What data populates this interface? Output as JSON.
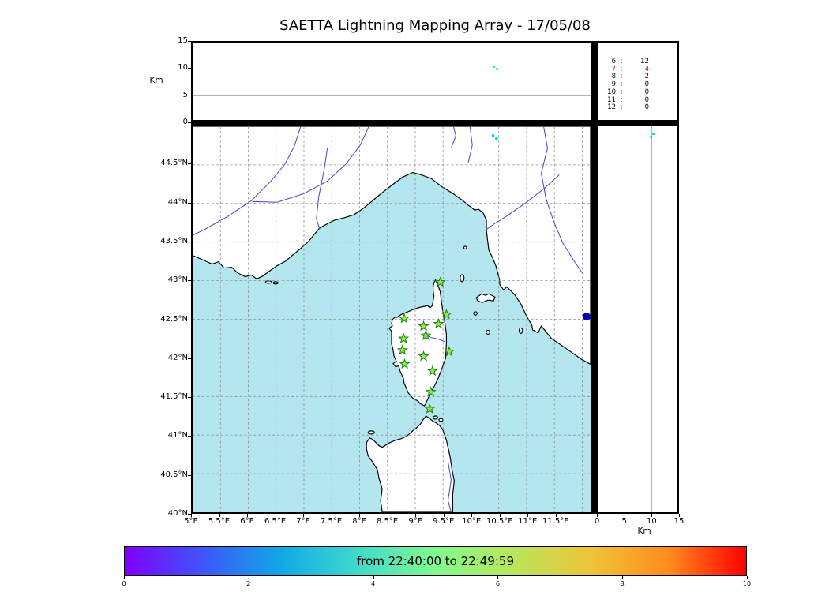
{
  "title": "SAETTA Lightning Mapping Array - 17/05/08",
  "colors": {
    "sea": "#b4e6f0",
    "land": "#ffffff",
    "coast": "#000000",
    "river": "#4343c6",
    "grid": "#8c8c8c",
    "station_fill": "#8dee3c",
    "station_edge": "#1f7a1f",
    "source": "#00d4d4",
    "lake": "#0000bb",
    "highlight": "#dd0000"
  },
  "altitude_panel": {
    "ylabel": "Km",
    "yticks": [
      15,
      10,
      5,
      0
    ],
    "grid_km": [
      5,
      10
    ],
    "ylim": [
      0,
      15
    ]
  },
  "station_counts": [
    {
      "stations": "6",
      "count": "12",
      "highlight": false
    },
    {
      "stations": "7",
      "count": "4",
      "highlight": true
    },
    {
      "stations": "8",
      "count": "2",
      "highlight": false
    },
    {
      "stations": "9",
      "count": "0",
      "highlight": false
    },
    {
      "stations": "10",
      "count": "0",
      "highlight": false
    },
    {
      "stations": "11",
      "count": "0",
      "highlight": false
    },
    {
      "stations": "12",
      "count": "0",
      "highlight": false
    }
  ],
  "map": {
    "lat_ticks": [
      {
        "v": 44.5,
        "label": "44.5°N"
      },
      {
        "v": 44,
        "label": "44°N"
      },
      {
        "v": 43.5,
        "label": "43.5°N"
      },
      {
        "v": 43,
        "label": "43°N"
      },
      {
        "v": 42.5,
        "label": "42.5°N"
      },
      {
        "v": 42,
        "label": "42°N"
      },
      {
        "v": 41.5,
        "label": "41.5°N"
      },
      {
        "v": 41,
        "label": "41°N"
      },
      {
        "v": 40.5,
        "label": "40.5°N"
      },
      {
        "v": 40,
        "label": "40°N"
      }
    ],
    "lon_ticks": [
      {
        "v": 5,
        "label": "5°E"
      },
      {
        "v": 5.5,
        "label": "5.5°E"
      },
      {
        "v": 6,
        "label": "6°E"
      },
      {
        "v": 6.5,
        "label": "6.5°E"
      },
      {
        "v": 7,
        "label": "7°E"
      },
      {
        "v": 7.5,
        "label": "7.5°E"
      },
      {
        "v": 8,
        "label": "8°E"
      },
      {
        "v": 8.5,
        "label": "8.5°E"
      },
      {
        "v": 9,
        "label": "9°E"
      },
      {
        "v": 9.5,
        "label": "9.5°E"
      },
      {
        "v": 10,
        "label": "10°E"
      },
      {
        "v": 10.5,
        "label": "10.5°E"
      },
      {
        "v": 11,
        "label": "11°E"
      },
      {
        "v": 11.5,
        "label": "11.5°E"
      }
    ],
    "lon_grid": [
      5.5,
      6,
      6.5,
      7,
      7.5,
      8,
      8.5,
      9,
      9.5,
      10,
      10.5,
      11,
      11.5,
      12
    ],
    "lat_grid": [
      44.5,
      44,
      43.5,
      43,
      42.5,
      42,
      41.5,
      41,
      40.5
    ]
  },
  "right_panel": {
    "xlabel": "Km",
    "xticks": [
      0,
      5,
      10,
      15
    ],
    "grid_km": [
      5,
      10
    ],
    "xlim": [
      0,
      15
    ]
  },
  "colorbar": {
    "label": "from 22:40:00 to 22:49:59",
    "ticks": [
      0,
      2,
      4,
      6,
      8,
      10
    ],
    "range": [
      0,
      10
    ],
    "gradient": [
      "#7f00ff",
      "#3f55fa",
      "#0fa8e6",
      "#40dacc",
      "#80fa8e",
      "#bbe55c",
      "#eec438",
      "#ff8c1e",
      "#ff0000"
    ]
  },
  "chart_data": {
    "type": "scatter",
    "title": "SAETTA Lightning Mapping Array - 17/05/08",
    "date": "17/05/08",
    "map_extent": {
      "lon": [
        5,
        12.15
      ],
      "lat": [
        40,
        45
      ]
    },
    "altitude_axis_km": {
      "range": [
        0,
        15
      ],
      "ticks": [
        0,
        5,
        10,
        15
      ],
      "grid": [
        5,
        10
      ]
    },
    "stations_lon_lat": [
      [
        9.45,
        42.98
      ],
      [
        8.8,
        42.51
      ],
      [
        9.15,
        42.41
      ],
      [
        9.42,
        42.44
      ],
      [
        9.56,
        42.56
      ],
      [
        8.79,
        42.25
      ],
      [
        9.19,
        42.29
      ],
      [
        8.77,
        42.1
      ],
      [
        9.15,
        42.02
      ],
      [
        9.61,
        42.08
      ],
      [
        8.81,
        41.92
      ],
      [
        9.31,
        41.83
      ],
      [
        9.28,
        41.56
      ],
      [
        9.26,
        41.34
      ]
    ],
    "sources": [
      {
        "lon": 10.4,
        "lat": 44.88,
        "alt_km": 10.3
      },
      {
        "lon": 10.46,
        "lat": 44.84,
        "alt_km": 9.9
      }
    ],
    "station_count_histogram": {
      "stations": [
        6,
        7,
        8,
        9,
        10,
        11,
        12
      ],
      "counts": [
        12,
        4,
        2,
        0,
        0,
        0,
        0
      ],
      "highlighted_station": 7
    },
    "lake_point": {
      "lon": 12.08,
      "lat": 42.54
    },
    "time_window": {
      "from": "22:40:00",
      "to": "22:49:59"
    },
    "colorbar": {
      "label": "from 22:40:00 to 22:49:59",
      "range_minutes": [
        0,
        10
      ],
      "ticks": [
        0,
        2,
        4,
        6,
        8,
        10
      ],
      "colormap": "rainbow"
    }
  }
}
